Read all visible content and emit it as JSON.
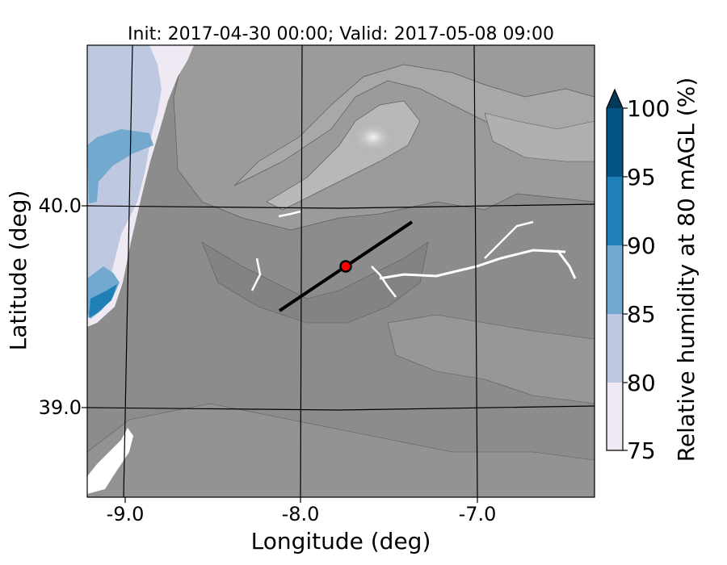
{
  "title": "Init: 2017-04-30 00:00; Valid: 2017-05-08 09:00",
  "x_axis": {
    "label": "Longitude (deg)",
    "ticks": [
      {
        "value": -9.0,
        "label": "-9.0"
      },
      {
        "value": -8.0,
        "label": "-8.0"
      },
      {
        "value": -7.0,
        "label": "-7.0"
      }
    ]
  },
  "y_axis": {
    "label": "Latitude (deg)",
    "ticks": [
      {
        "value": 40.0,
        "label": "40.0"
      },
      {
        "value": 39.0,
        "label": "39.0"
      }
    ]
  },
  "colorbar": {
    "label": "Relative humidity at 80 mAGL (%)",
    "levels": [
      {
        "from": 75,
        "to": 80,
        "color": "#efe9f3"
      },
      {
        "from": 80,
        "to": 85,
        "color": "#bfc8e1"
      },
      {
        "from": 85,
        "to": 90,
        "color": "#74a9cf"
      },
      {
        "from": 90,
        "to": 95,
        "color": "#1f7fb7"
      },
      {
        "from": 95,
        "to": 100,
        "color": "#045585"
      }
    ],
    "extend_color": "#023858",
    "tick_labels": [
      "75",
      "80",
      "85",
      "90",
      "95",
      "100"
    ]
  },
  "map": {
    "terrain_color": "#8a8a8a",
    "lon_range": [
      -9.2,
      -6.35
    ],
    "lat_range": [
      38.55,
      40.8
    ],
    "transect": {
      "start": [
        -8.12,
        39.48
      ],
      "end": [
        -7.38,
        39.92
      ]
    },
    "point": {
      "lon": -7.75,
      "lat": 39.69,
      "color": "#ff0000"
    }
  }
}
